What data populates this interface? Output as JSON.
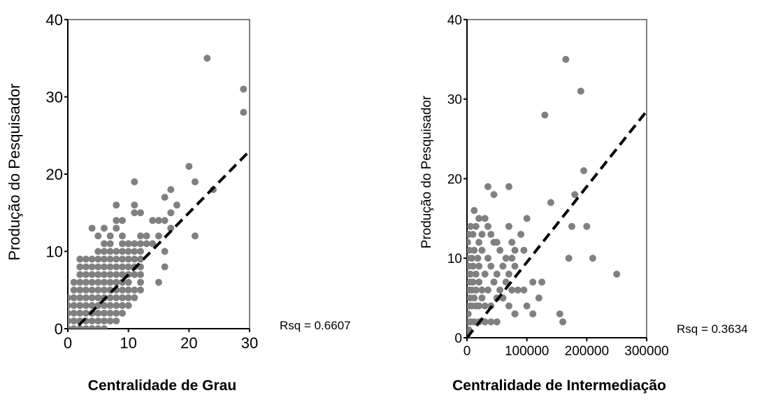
{
  "chart_data": [
    {
      "type": "scatter",
      "title": "",
      "xlabel": "Centralidade de Grau",
      "ylabel": "Produção do Pesquisador",
      "xlim": [
        0,
        30
      ],
      "ylim": [
        0,
        40
      ],
      "x_ticks": [
        "0",
        "10",
        "20",
        "30"
      ],
      "y_ticks": [
        "0",
        "10",
        "20",
        "30",
        "40"
      ],
      "grid": false,
      "point_color": "#808080",
      "fit_line": {
        "style": "dashed",
        "color": "#000000",
        "x": [
          0,
          30
        ],
        "y": [
          -1,
          23
        ]
      },
      "annotation": "Rsq = 0.6607",
      "points": [
        [
          0,
          0
        ],
        [
          1,
          0
        ],
        [
          2,
          0
        ],
        [
          3,
          0
        ],
        [
          4,
          0
        ],
        [
          5,
          0
        ],
        [
          6,
          0
        ],
        [
          0,
          1
        ],
        [
          1,
          1
        ],
        [
          2,
          1
        ],
        [
          3,
          1
        ],
        [
          4,
          1
        ],
        [
          5,
          1
        ],
        [
          6,
          1
        ],
        [
          7,
          1
        ],
        [
          8,
          1
        ],
        [
          0,
          2
        ],
        [
          1,
          2
        ],
        [
          2,
          2
        ],
        [
          3,
          2
        ],
        [
          4,
          2
        ],
        [
          5,
          2
        ],
        [
          6,
          2
        ],
        [
          7,
          2
        ],
        [
          8,
          2
        ],
        [
          9,
          2
        ],
        [
          0,
          3
        ],
        [
          1,
          3
        ],
        [
          2,
          3
        ],
        [
          3,
          3
        ],
        [
          4,
          3
        ],
        [
          5,
          3
        ],
        [
          6,
          3
        ],
        [
          7,
          3
        ],
        [
          8,
          3
        ],
        [
          9,
          3
        ],
        [
          10,
          3
        ],
        [
          0,
          4
        ],
        [
          1,
          4
        ],
        [
          2,
          4
        ],
        [
          3,
          4
        ],
        [
          4,
          4
        ],
        [
          5,
          4
        ],
        [
          6,
          4
        ],
        [
          7,
          4
        ],
        [
          8,
          4
        ],
        [
          9,
          4
        ],
        [
          10,
          4
        ],
        [
          11,
          4
        ],
        [
          1,
          5
        ],
        [
          2,
          5
        ],
        [
          3,
          5
        ],
        [
          4,
          5
        ],
        [
          5,
          5
        ],
        [
          6,
          5
        ],
        [
          7,
          5
        ],
        [
          8,
          5
        ],
        [
          9,
          5
        ],
        [
          10,
          5
        ],
        [
          11,
          5
        ],
        [
          12,
          5
        ],
        [
          1,
          6
        ],
        [
          2,
          6
        ],
        [
          3,
          6
        ],
        [
          4,
          6
        ],
        [
          5,
          6
        ],
        [
          6,
          6
        ],
        [
          7,
          6
        ],
        [
          8,
          6
        ],
        [
          9,
          6
        ],
        [
          10,
          6
        ],
        [
          12,
          6
        ],
        [
          15,
          6
        ],
        [
          2,
          7
        ],
        [
          3,
          7
        ],
        [
          4,
          7
        ],
        [
          5,
          7
        ],
        [
          6,
          7
        ],
        [
          7,
          7
        ],
        [
          8,
          7
        ],
        [
          9,
          7
        ],
        [
          10,
          7
        ],
        [
          11,
          7
        ],
        [
          12,
          7
        ],
        [
          2,
          8
        ],
        [
          3,
          8
        ],
        [
          4,
          8
        ],
        [
          5,
          8
        ],
        [
          6,
          8
        ],
        [
          7,
          8
        ],
        [
          8,
          8
        ],
        [
          9,
          8
        ],
        [
          10,
          8
        ],
        [
          11,
          8
        ],
        [
          12,
          8
        ],
        [
          16,
          8
        ],
        [
          2,
          9
        ],
        [
          3,
          9
        ],
        [
          4,
          9
        ],
        [
          5,
          9
        ],
        [
          6,
          9
        ],
        [
          7,
          9
        ],
        [
          8,
          9
        ],
        [
          9,
          9
        ],
        [
          10,
          9
        ],
        [
          11,
          9
        ],
        [
          12,
          9
        ],
        [
          5,
          10
        ],
        [
          6,
          10
        ],
        [
          7,
          10
        ],
        [
          8,
          10
        ],
        [
          9,
          10
        ],
        [
          10,
          10
        ],
        [
          11,
          10
        ],
        [
          12,
          10
        ],
        [
          16,
          10
        ],
        [
          6,
          11
        ],
        [
          7,
          11
        ],
        [
          9,
          11
        ],
        [
          10,
          11
        ],
        [
          11,
          11
        ],
        [
          12,
          11
        ],
        [
          13,
          11
        ],
        [
          14,
          11
        ],
        [
          5,
          12
        ],
        [
          7,
          12
        ],
        [
          9,
          12
        ],
        [
          12,
          12
        ],
        [
          13,
          12
        ],
        [
          15,
          12
        ],
        [
          21,
          12
        ],
        [
          4,
          13
        ],
        [
          6,
          13
        ],
        [
          8,
          13
        ],
        [
          17,
          13
        ],
        [
          8,
          14
        ],
        [
          9,
          14
        ],
        [
          14,
          14
        ],
        [
          15,
          14
        ],
        [
          16,
          14
        ],
        [
          11,
          15
        ],
        [
          12,
          15
        ],
        [
          17,
          15
        ],
        [
          8,
          16
        ],
        [
          11,
          16
        ],
        [
          18,
          16
        ],
        [
          16,
          17
        ],
        [
          17,
          18
        ],
        [
          24,
          18
        ],
        [
          11,
          19
        ],
        [
          21,
          19
        ],
        [
          20,
          21
        ],
        [
          29,
          28
        ],
        [
          29,
          31
        ],
        [
          23,
          35
        ]
      ]
    },
    {
      "type": "scatter",
      "title": "",
      "xlabel": "Centralidade de Intermediação",
      "ylabel": "Produção do Pesquisador",
      "xlim": [
        0,
        300000
      ],
      "ylim": [
        0,
        40
      ],
      "x_ticks": [
        "0",
        "100000",
        "200000",
        "300000"
      ],
      "y_ticks": [
        "0",
        "10",
        "20",
        "30",
        "40"
      ],
      "grid": false,
      "point_color": "#808080",
      "fit_line": {
        "style": "dashed",
        "color": "#000000",
        "x": [
          0,
          300000
        ],
        "y": [
          0,
          28.5
        ]
      },
      "annotation": "Rsq = 0.3634",
      "points": [
        [
          1000,
          0
        ],
        [
          2000,
          1
        ],
        [
          3000,
          1
        ],
        [
          6000,
          2
        ],
        [
          12000,
          2
        ],
        [
          20000,
          2
        ],
        [
          30000,
          2
        ],
        [
          40000,
          2
        ],
        [
          50000,
          2
        ],
        [
          80000,
          3
        ],
        [
          110000,
          3
        ],
        [
          160000,
          2
        ],
        [
          155000,
          3
        ],
        [
          1000,
          2
        ],
        [
          2000,
          3
        ],
        [
          3000,
          4
        ],
        [
          5000,
          5
        ],
        [
          8000,
          4
        ],
        [
          12000,
          5
        ],
        [
          15000,
          4
        ],
        [
          20000,
          4
        ],
        [
          25000,
          5
        ],
        [
          30000,
          4
        ],
        [
          40000,
          4
        ],
        [
          50000,
          5
        ],
        [
          60000,
          5
        ],
        [
          70000,
          4
        ],
        [
          80000,
          3
        ],
        [
          100000,
          4
        ],
        [
          1000,
          6
        ],
        [
          3000,
          6
        ],
        [
          5000,
          7
        ],
        [
          8000,
          6
        ],
        [
          10000,
          7
        ],
        [
          15000,
          6
        ],
        [
          20000,
          7
        ],
        [
          25000,
          6
        ],
        [
          35000,
          6
        ],
        [
          45000,
          7
        ],
        [
          55000,
          6
        ],
        [
          65000,
          7
        ],
        [
          75000,
          6
        ],
        [
          85000,
          6
        ],
        [
          95000,
          6
        ],
        [
          110000,
          7
        ],
        [
          120000,
          5
        ],
        [
          125000,
          7
        ],
        [
          1000,
          8
        ],
        [
          3000,
          9
        ],
        [
          6000,
          8
        ],
        [
          10000,
          9
        ],
        [
          15000,
          8
        ],
        [
          20000,
          9
        ],
        [
          30000,
          8
        ],
        [
          40000,
          9
        ],
        [
          50000,
          8
        ],
        [
          60000,
          9
        ],
        [
          70000,
          8
        ],
        [
          75000,
          10
        ],
        [
          80000,
          9
        ],
        [
          1000,
          10
        ],
        [
          4000,
          11
        ],
        [
          8000,
          10
        ],
        [
          12000,
          11
        ],
        [
          18000,
          10
        ],
        [
          25000,
          11
        ],
        [
          35000,
          10
        ],
        [
          45000,
          12
        ],
        [
          55000,
          11
        ],
        [
          65000,
          10
        ],
        [
          80000,
          11
        ],
        [
          90000,
          13
        ],
        [
          100000,
          15
        ],
        [
          170000,
          10
        ],
        [
          210000,
          10
        ],
        [
          1000,
          12
        ],
        [
          3000,
          13
        ],
        [
          6000,
          14
        ],
        [
          10000,
          13
        ],
        [
          15000,
          14
        ],
        [
          20000,
          12
        ],
        [
          25000,
          13
        ],
        [
          30000,
          15
        ],
        [
          35000,
          14
        ],
        [
          40000,
          13
        ],
        [
          50000,
          12
        ],
        [
          70000,
          14
        ],
        [
          75000,
          12
        ],
        [
          95000,
          11
        ],
        [
          12000,
          16
        ],
        [
          20000,
          15
        ],
        [
          35000,
          19
        ],
        [
          45000,
          18
        ],
        [
          70000,
          19
        ],
        [
          140000,
          17
        ],
        [
          175000,
          14
        ],
        [
          180000,
          18
        ],
        [
          195000,
          21
        ],
        [
          200000,
          14
        ],
        [
          250000,
          8
        ],
        [
          130000,
          28
        ],
        [
          190000,
          31
        ],
        [
          165000,
          35
        ]
      ]
    }
  ]
}
